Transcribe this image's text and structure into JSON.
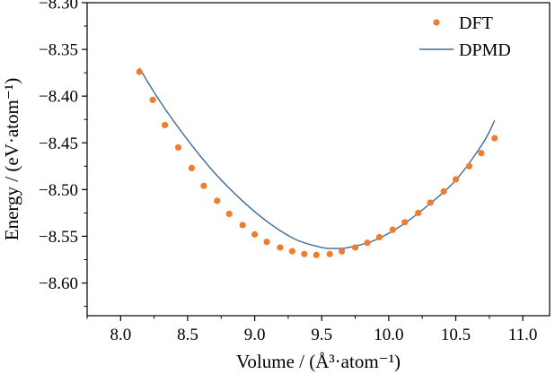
{
  "chart_data": {
    "type": "scatter",
    "title": "",
    "xlabel": "Volume / (Å³·atom⁻¹)",
    "ylabel": "Energy / (eV·atom⁻¹)",
    "xlim": [
      7.75,
      11.2
    ],
    "ylim": [
      -8.635,
      -8.3
    ],
    "x_ticks": [
      8.0,
      8.5,
      9.0,
      9.5,
      10.0,
      10.5,
      11.0
    ],
    "x_tick_labels": [
      "8.0",
      "8.5",
      "9.0",
      "9.5",
      "10.0",
      "10.5",
      "11.0"
    ],
    "y_ticks": [
      -8.3,
      -8.35,
      -8.4,
      -8.45,
      -8.5,
      -8.55,
      -8.6
    ],
    "y_tick_labels": [
      "−8.30",
      "−8.35",
      "−8.40",
      "−8.45",
      "−8.50",
      "−8.55",
      "−8.60"
    ],
    "grid": false,
    "legend_position": "top-right",
    "series": [
      {
        "name": "DFT",
        "kind": "scatter",
        "color": "#ED7D31",
        "x": [
          8.14,
          8.24,
          8.33,
          8.43,
          8.53,
          8.62,
          8.72,
          8.81,
          8.91,
          9.0,
          9.09,
          9.19,
          9.28,
          9.37,
          9.46,
          9.56,
          9.65,
          9.75,
          9.84,
          9.93,
          10.03,
          10.12,
          10.22,
          10.31,
          10.41,
          10.5,
          10.6,
          10.69,
          10.79
        ],
        "y": [
          -8.374,
          -8.404,
          -8.431,
          -8.455,
          -8.477,
          -8.496,
          -8.512,
          -8.526,
          -8.538,
          -8.548,
          -8.556,
          -8.562,
          -8.566,
          -8.569,
          -8.57,
          -8.569,
          -8.566,
          -8.562,
          -8.557,
          -8.551,
          -8.543,
          -8.535,
          -8.525,
          -8.514,
          -8.502,
          -8.489,
          -8.475,
          -8.461,
          -8.445
        ]
      },
      {
        "name": "DPMD",
        "kind": "line",
        "color": "#3E6B9A",
        "x": [
          8.14,
          8.3,
          8.5,
          8.7,
          8.9,
          9.1,
          9.3,
          9.5,
          9.6,
          9.7,
          9.9,
          10.1,
          10.3,
          10.5,
          10.7,
          10.79
        ],
        "y": [
          -8.37,
          -8.407,
          -8.447,
          -8.482,
          -8.511,
          -8.535,
          -8.553,
          -8.562,
          -8.563,
          -8.562,
          -8.554,
          -8.538,
          -8.516,
          -8.49,
          -8.451,
          -8.426
        ]
      }
    ]
  }
}
